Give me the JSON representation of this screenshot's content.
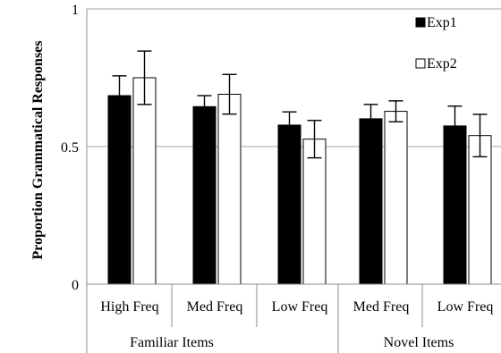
{
  "chart_data": {
    "type": "bar",
    "title": "",
    "xlabel": "",
    "ylabel": "Proportion Grammatical Responses",
    "ylim": [
      0,
      1
    ],
    "yticks": [
      "0",
      "0.5",
      "1"
    ],
    "grid": true,
    "legend": "top-right",
    "categories": [
      "High Freq",
      "Med Freq",
      "Low Freq",
      "Med Freq",
      "Low Freq"
    ],
    "groups": [
      {
        "label": "Familiar Items",
        "categories": [
          "High Freq",
          "Med Freq",
          "Low Freq"
        ]
      },
      {
        "label": "Novel Items",
        "categories": [
          "Med Freq",
          "Low Freq"
        ]
      }
    ],
    "series": [
      {
        "name": "Exp1",
        "color": "#000000",
        "values": [
          0.685,
          0.645,
          0.578,
          0.601,
          0.575
        ],
        "errors": [
          0.072,
          0.04,
          0.048,
          0.052,
          0.072
        ]
      },
      {
        "name": "Exp2",
        "color": "#ffffff",
        "values": [
          0.75,
          0.69,
          0.527,
          0.628,
          0.54
        ],
        "errors": [
          0.097,
          0.072,
          0.068,
          0.038,
          0.077
        ]
      }
    ]
  }
}
